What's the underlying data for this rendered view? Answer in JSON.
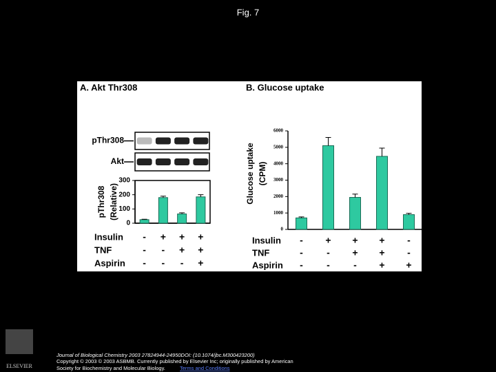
{
  "header": {
    "title": "Fig. 7"
  },
  "chart_data": [
    {
      "type": "bar",
      "title": "A. Akt Thr308",
      "blot_labels": [
        "pThr308",
        "Akt"
      ],
      "y_label": [
        "pThr308",
        "(Relative)"
      ],
      "values": [
        25,
        180,
        65,
        185
      ],
      "errors": [
        3,
        10,
        8,
        15
      ],
      "color": "#2ec9a0",
      "ylim": [
        0,
        300
      ],
      "yticks": [
        0,
        100,
        200,
        300
      ],
      "treatments": [
        {
          "name": "Insulin",
          "signs": [
            "-",
            "+",
            "+",
            "+"
          ]
        },
        {
          "name": "TNF",
          "signs": [
            "-",
            "-",
            "+",
            "+"
          ]
        },
        {
          "name": "Aspirin",
          "signs": [
            "-",
            "-",
            "-",
            "+"
          ]
        }
      ]
    },
    {
      "type": "bar",
      "title": "B. Glucose uptake",
      "y_label": [
        "Glucose uptake",
        "(CPM)"
      ],
      "values": [
        700,
        5100,
        1950,
        4450,
        900
      ],
      "errors": [
        60,
        500,
        200,
        500,
        80
      ],
      "color": "#2ec9a0",
      "ylim": [
        0,
        6000
      ],
      "yticks": [
        0,
        1000,
        2000,
        3000,
        4000,
        5000,
        6000
      ],
      "treatments": [
        {
          "name": "Insulin",
          "signs": [
            "-",
            "+",
            "+",
            "+",
            "-"
          ]
        },
        {
          "name": "TNF",
          "signs": [
            "-",
            "-",
            "+",
            "+",
            "-"
          ]
        },
        {
          "name": "Aspirin",
          "signs": [
            "-",
            "-",
            "-",
            "+",
            "+"
          ]
        }
      ]
    }
  ],
  "footer": {
    "logo": "ELSEVIER",
    "citation": "Journal of Biological Chemistry 2003 27824944-24950DOI: (10.1074/jbc.M300423200)",
    "copyright": "Copyright © 2003 © 2003 ASBMB. Currently published by Elsevier Inc; originally published by American",
    "copyright2": "Society for Biochemistry and Molecular Biology.",
    "link": "Terms and Conditions"
  }
}
